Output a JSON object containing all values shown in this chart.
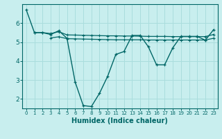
{
  "xlabel": "Humidex (Indice chaleur)",
  "bg_color": "#c8eeee",
  "grid_color": "#aadddd",
  "line_color": "#006666",
  "xlim": [
    -0.5,
    23.5
  ],
  "ylim": [
    1.5,
    7.0
  ],
  "yticks": [
    2,
    3,
    4,
    5,
    6
  ],
  "xticks": [
    0,
    1,
    2,
    3,
    4,
    5,
    6,
    7,
    8,
    9,
    10,
    11,
    12,
    13,
    14,
    15,
    16,
    17,
    18,
    19,
    20,
    21,
    22,
    23
  ],
  "series1_x": [
    0,
    1,
    2,
    3,
    4,
    5,
    6,
    7,
    8,
    9,
    10,
    11,
    12,
    13,
    14,
    15,
    16,
    17,
    18,
    19,
    20,
    21,
    22,
    23
  ],
  "series1_y": [
    6.7,
    5.5,
    5.5,
    5.4,
    5.6,
    5.2,
    2.9,
    1.65,
    1.6,
    2.3,
    3.2,
    4.35,
    4.5,
    5.35,
    5.35,
    4.75,
    3.8,
    3.8,
    4.7,
    5.3,
    5.3,
    5.3,
    5.1,
    5.65
  ],
  "series2_x": [
    1,
    2,
    3,
    4,
    5,
    6,
    7,
    8,
    9,
    10,
    11,
    12,
    13,
    14,
    15,
    16,
    17,
    18,
    19,
    20,
    21,
    22,
    23
  ],
  "series2_y": [
    5.5,
    5.5,
    5.45,
    5.55,
    5.38,
    5.37,
    5.36,
    5.35,
    5.34,
    5.33,
    5.33,
    5.32,
    5.32,
    5.31,
    5.3,
    5.3,
    5.3,
    5.29,
    5.29,
    5.29,
    5.29,
    5.29,
    5.4
  ],
  "series3_x": [
    3,
    4,
    5,
    6,
    7,
    8,
    9,
    10,
    11,
    12,
    13,
    14,
    15,
    16,
    17,
    18,
    19,
    20,
    21,
    22,
    23
  ],
  "series3_y": [
    5.22,
    5.28,
    5.18,
    5.17,
    5.16,
    5.15,
    5.14,
    5.13,
    5.12,
    5.12,
    5.12,
    5.12,
    5.11,
    5.11,
    5.11,
    5.11,
    5.11,
    5.11,
    5.11,
    5.11,
    5.2
  ]
}
